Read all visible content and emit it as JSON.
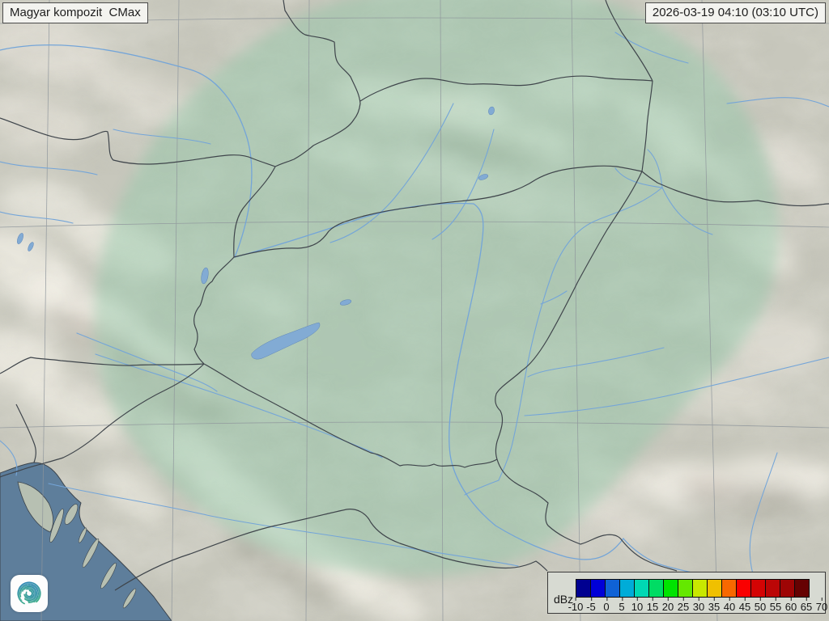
{
  "header": {
    "title": "Magyar kompozit  CMax",
    "timestamp": "2026-03-19 04:10 (03:10 UTC)"
  },
  "legend": {
    "unit": "dBz",
    "tick_labels": [
      "-10",
      "-5",
      "0",
      "5",
      "10",
      "15",
      "20",
      "25",
      "30",
      "35",
      "40",
      "45",
      "50",
      "55",
      "60",
      "65",
      "70"
    ],
    "cell_colors": [
      "#000090",
      "#0000D8",
      "#0F62D6",
      "#00ACD8",
      "#00D8B4",
      "#00DC64",
      "#00E400",
      "#64E800",
      "#C8E800",
      "#F0C000",
      "#F86800",
      "#FA0000",
      "#D40404",
      "#BC0606",
      "#9E0505",
      "#660202"
    ]
  },
  "map": {
    "land_color": "#C7C7BC",
    "sea_color": "#5E7E9B",
    "coverage_tint_color": "#8CC7A6",
    "river_color": "#74A5D8",
    "lake_color": "#82ABD4",
    "border_color": "#3F454B",
    "grid_color": "#8E959B",
    "island_color": "#B7C0B2"
  },
  "logo": {
    "name": "met-service-spiral-logo",
    "gradient_start": "#2E7FC0",
    "gradient_end": "#3FB878"
  }
}
